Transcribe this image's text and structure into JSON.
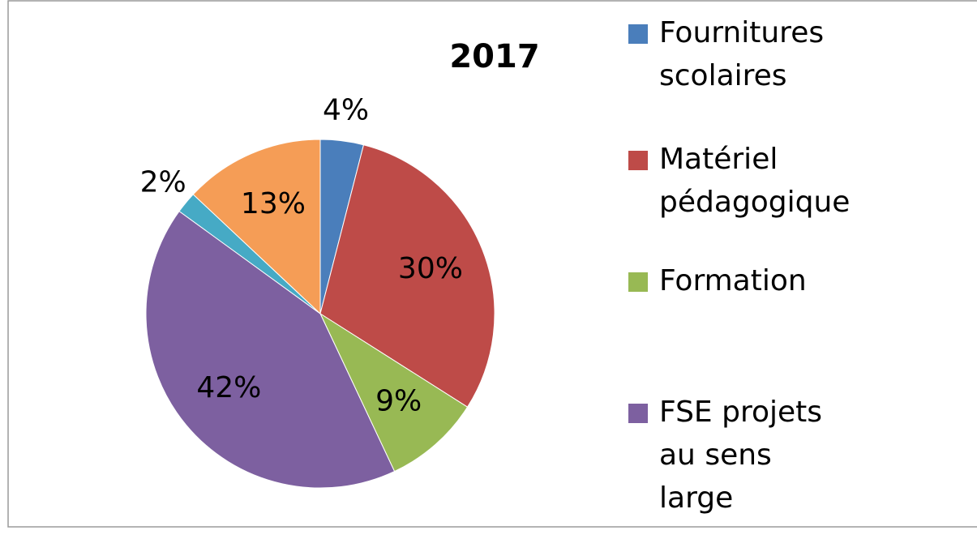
{
  "chart_data": {
    "type": "pie",
    "title": "2017",
    "categories": [
      "Fournitures scolaires",
      "Matériel pédagogique",
      "Formation",
      "FSE projets au sens large",
      null,
      null
    ],
    "values": [
      4,
      30,
      9,
      42,
      2,
      13
    ],
    "value_labels": [
      "4%",
      "30%",
      "9%",
      "42%",
      "2%",
      "13%"
    ],
    "colors": [
      "#4a7ebb",
      "#be4b48",
      "#98b954",
      "#7d60a0",
      "#46aac5",
      "#f59d56"
    ],
    "legend": "right"
  }
}
